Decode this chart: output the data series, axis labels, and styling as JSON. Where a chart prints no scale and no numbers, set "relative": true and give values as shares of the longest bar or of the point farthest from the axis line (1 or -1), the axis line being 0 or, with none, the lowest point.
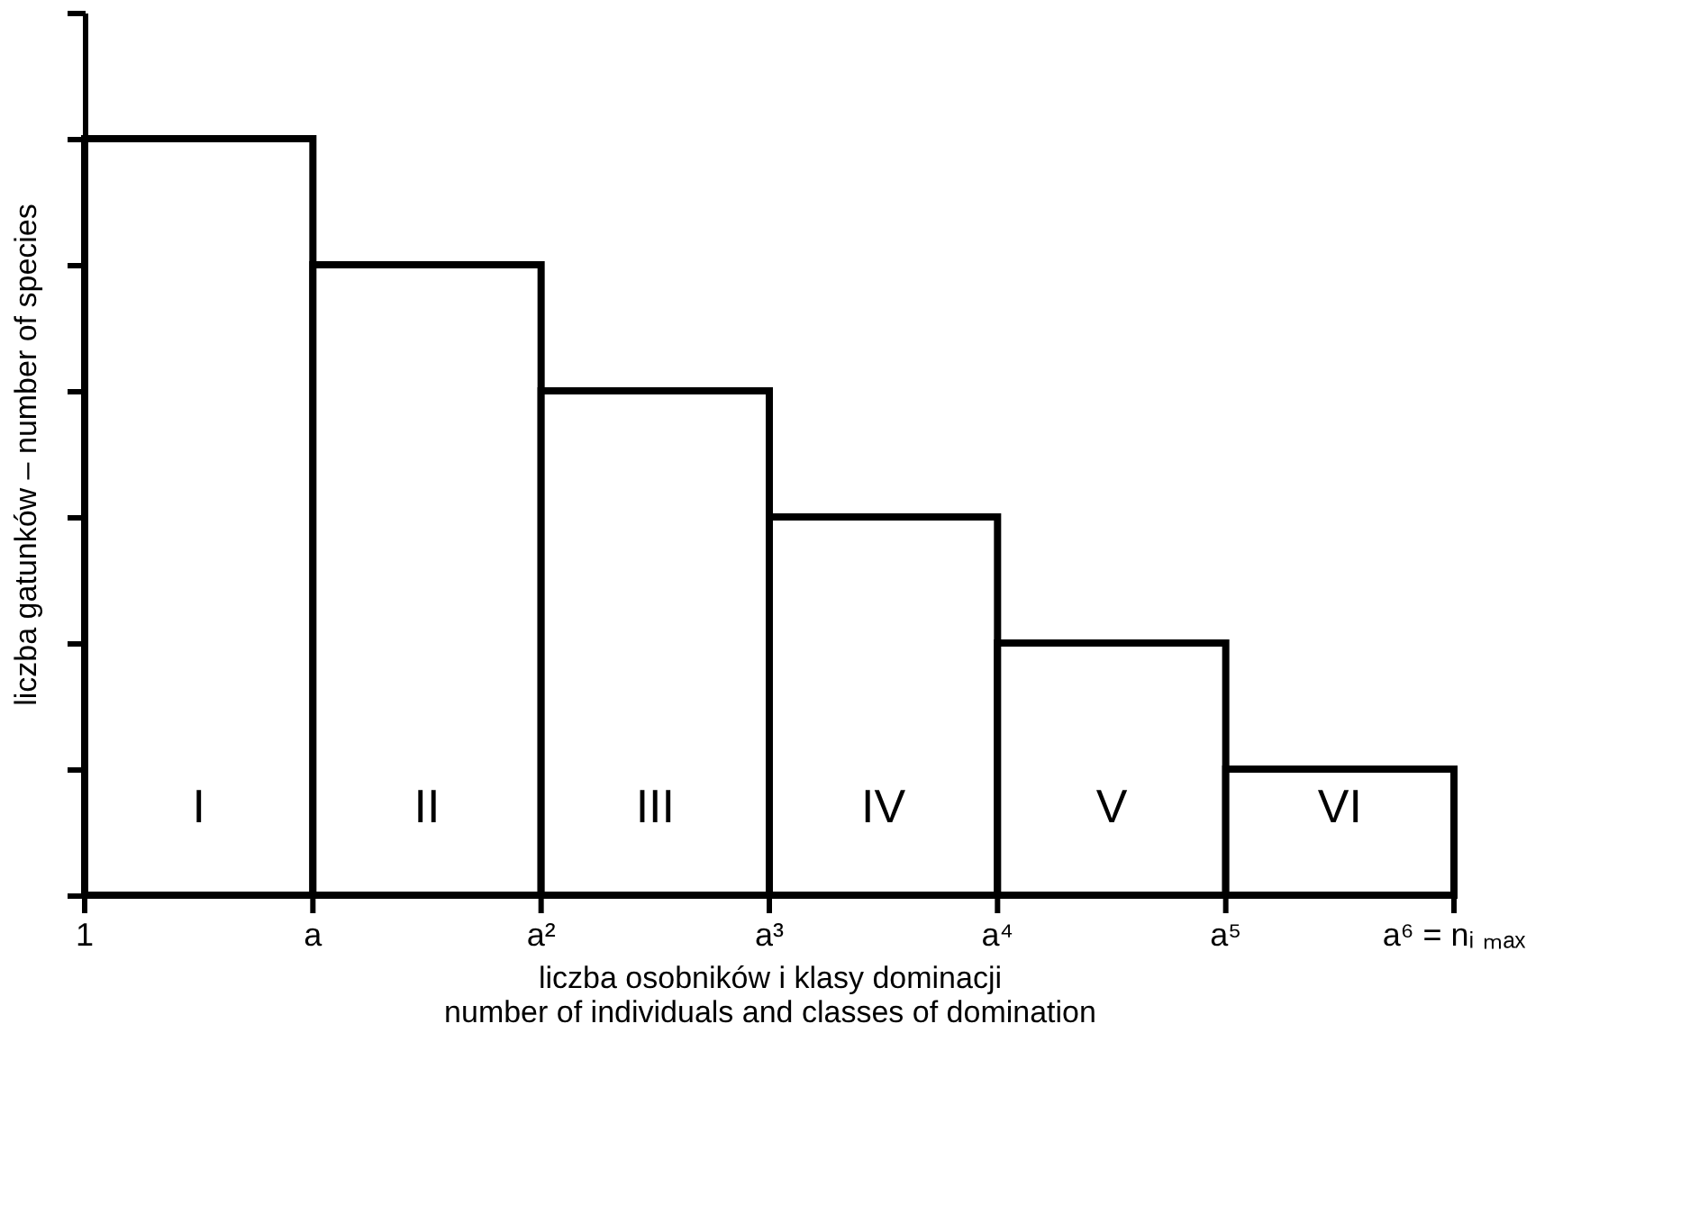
{
  "chart_data": {
    "type": "bar",
    "relative": true,
    "categories": [
      "I",
      "II",
      "III",
      "IV",
      "V",
      "VI"
    ],
    "values": [
      1,
      0.8333,
      0.6667,
      0.5,
      0.3333,
      0.1667
    ],
    "color": "#ffffff",
    "xlabel": "liczba osobników i klasy dominacji\nnumber of individuals and classes of domination",
    "ylabel": "liczba gatunków – number of species",
    "annotations": [
      "1",
      "a",
      "a²",
      "a³",
      "a⁴",
      "a⁵",
      "a⁶ = nᵢ ₘₐₓ"
    ],
    "grid": false
  }
}
